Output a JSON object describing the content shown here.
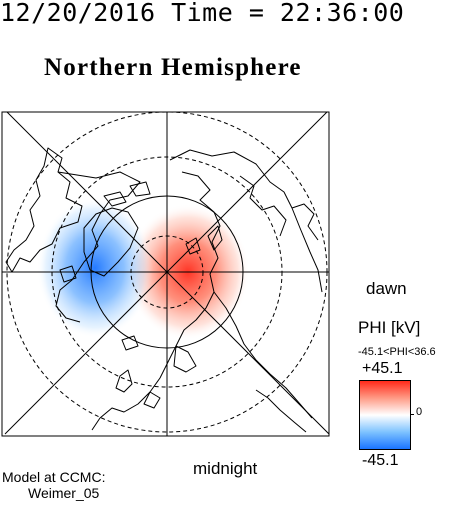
{
  "header": {
    "timestamp": "12/20/2016 Time = 22:36:00",
    "title": "Northern Hemisphere"
  },
  "map": {
    "labels": {
      "dawn": "dawn",
      "midnight": "midnight"
    },
    "potential_cells": [
      {
        "name": "positive-cell",
        "color": "#ff2a1a"
      },
      {
        "name": "negative-cell",
        "color": "#1a74ff"
      }
    ]
  },
  "colorbar": {
    "title": "PHI [kV]",
    "range_text": "-45.1<PHI<36.6",
    "max_label": "+45.1",
    "zero_label": "0",
    "min_label": "-45.1",
    "colors": {
      "high": "#ff2a1a",
      "mid": "#ffffff",
      "low": "#1a74ff"
    }
  },
  "footer": {
    "model_line1": "Model at CCMC:",
    "model_line2": "Weimer_05"
  }
}
